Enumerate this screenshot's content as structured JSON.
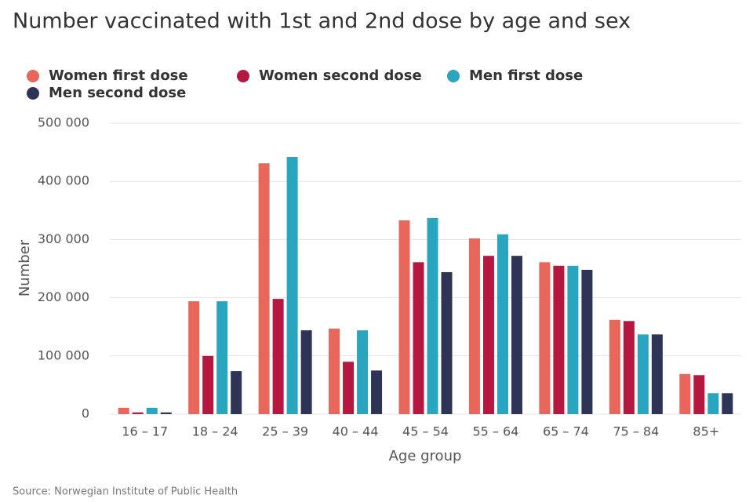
{
  "chart_data": {
    "type": "bar",
    "title": "Number vaccinated with 1st and 2nd dose by age and sex",
    "x_label": "Age group",
    "y_label": "Number",
    "source": "Source: Norwegian Institute of Public Health",
    "categories": [
      "16 – 17",
      "18 – 24",
      "25 – 39",
      "40 – 44",
      "45 – 54",
      "55 – 64",
      "65 – 74",
      "75 – 84",
      "85+"
    ],
    "series": [
      {
        "name": "Women first dose",
        "color": "#e8675a",
        "values": [
          11000,
          194000,
          431000,
          147000,
          333000,
          302000,
          261000,
          162000,
          69000
        ]
      },
      {
        "name": "Women second dose",
        "color": "#b5173f",
        "values": [
          3000,
          100000,
          198000,
          90000,
          261000,
          272000,
          255000,
          160000,
          67000
        ]
      },
      {
        "name": "Men first dose",
        "color": "#2aa5bf",
        "values": [
          11000,
          194000,
          442000,
          144000,
          337000,
          309000,
          255000,
          137000,
          36000
        ]
      },
      {
        "name": "Men second dose",
        "color": "#2e3456",
        "values": [
          3000,
          74000,
          144000,
          75000,
          244000,
          272000,
          248000,
          137000,
          36000
        ]
      }
    ],
    "ylim": [
      0,
      500000
    ],
    "yticks": [
      0,
      {
        "value": 100000,
        "label": "100 000"
      },
      {
        "value": 200000,
        "label": "200 000"
      },
      {
        "value": 300000,
        "label": "300 000"
      },
      {
        "value": 400000,
        "label": "400 000"
      },
      {
        "value": 500000,
        "label": "500 000"
      }
    ],
    "grid": true
  }
}
